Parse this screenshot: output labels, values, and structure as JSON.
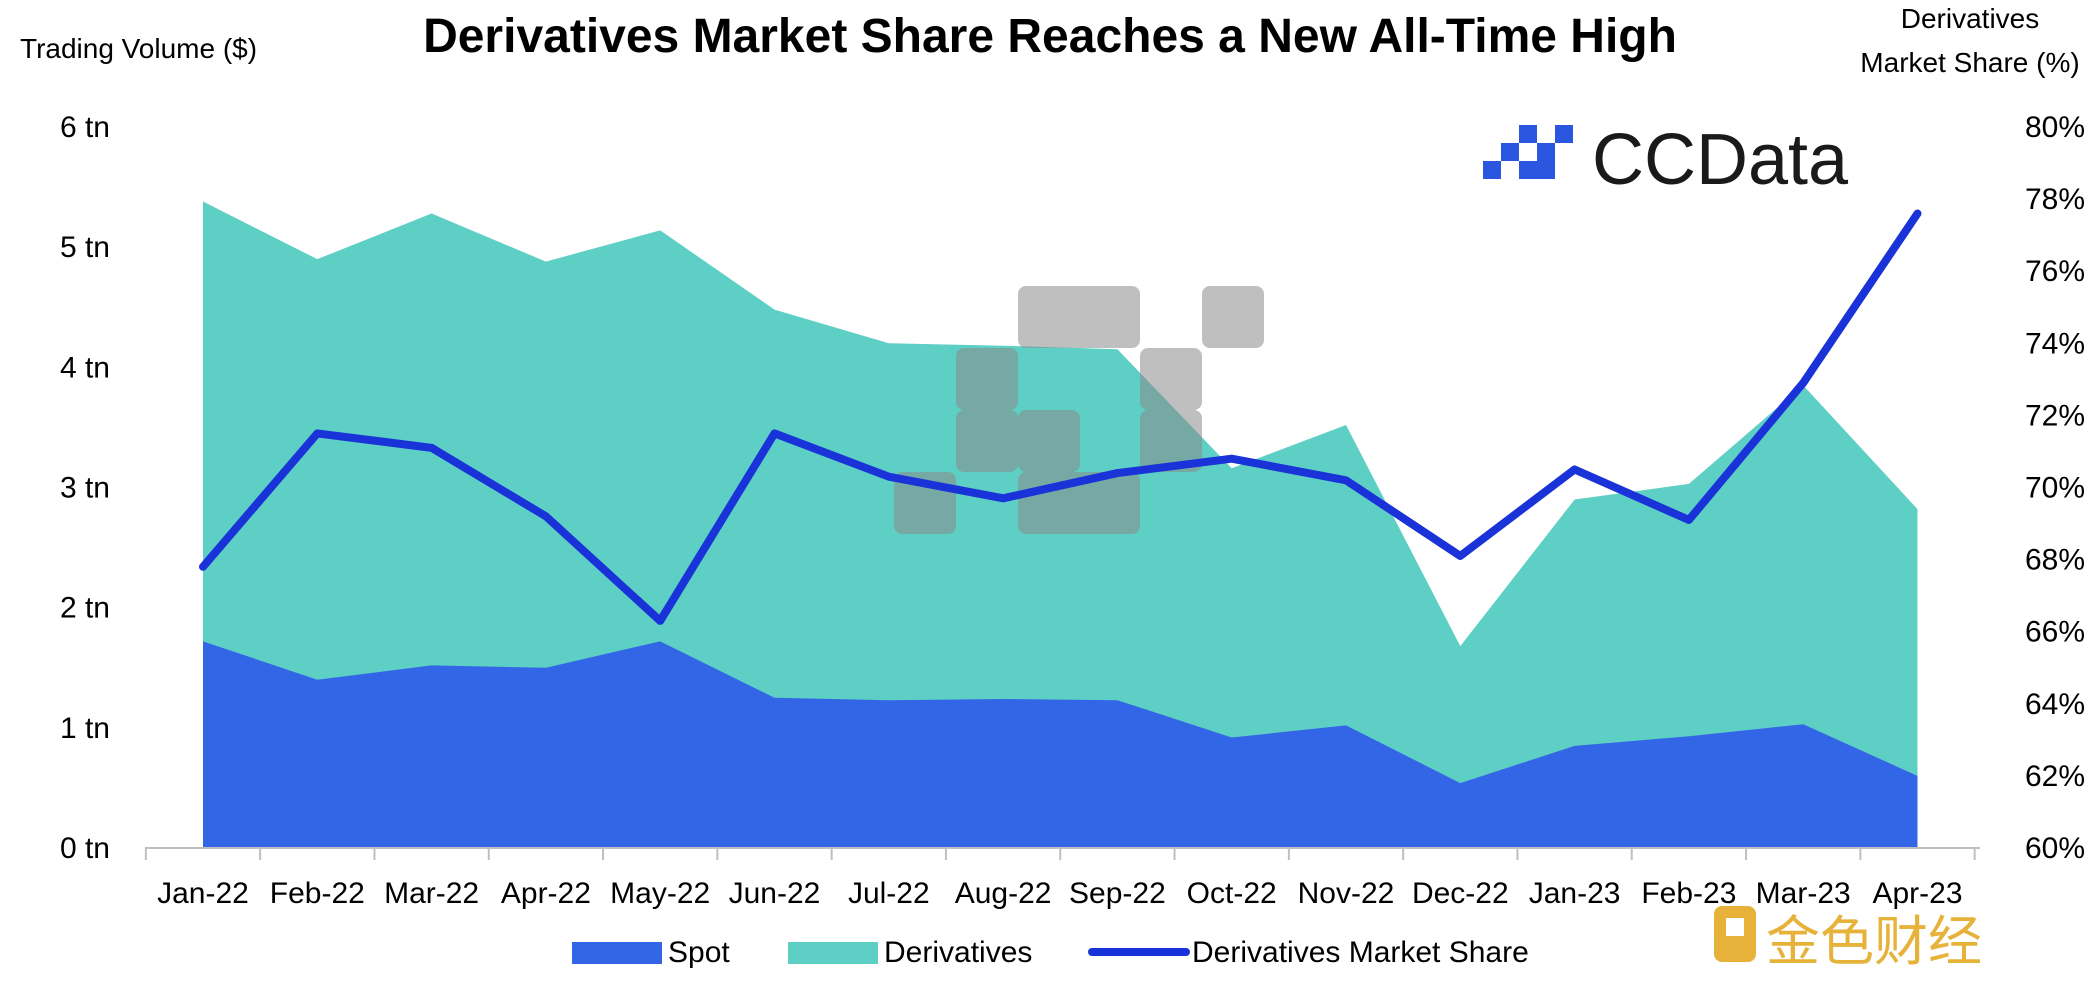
{
  "chart_data": {
    "type": "area",
    "title": "Derivatives Market Share Reaches a New All-Time High",
    "left_axis_label": "Trading Volume ($)",
    "right_axis_label_line1": "Derivatives",
    "right_axis_label_line2": "Market Share (%)",
    "categories": [
      "Jan-22",
      "Feb-22",
      "Mar-22",
      "Apr-22",
      "May-22",
      "Jun-22",
      "Jul-22",
      "Aug-22",
      "Sep-22",
      "Oct-22",
      "Nov-22",
      "Dec-22",
      "Jan-23",
      "Feb-23",
      "Mar-23",
      "Apr-23"
    ],
    "left_axis": {
      "min": 0,
      "max": 6,
      "ticks": [
        0,
        1,
        2,
        3,
        4,
        5,
        6
      ],
      "tick_labels": [
        "0 tn",
        "1 tn",
        "2 tn",
        "3 tn",
        "4 tn",
        "5 tn",
        "6 tn"
      ]
    },
    "right_axis": {
      "min": 60,
      "max": 80,
      "ticks": [
        60,
        62,
        64,
        66,
        68,
        70,
        72,
        74,
        76,
        78,
        80
      ],
      "tick_labels": [
        "60%",
        "62%",
        "64%",
        "66%",
        "68%",
        "70%",
        "72%",
        "74%",
        "76%",
        "78%",
        "80%"
      ]
    },
    "series": [
      {
        "name": "Spot",
        "type": "area",
        "axis": "left",
        "color": "#3366E6",
        "values": [
          1.72,
          1.4,
          1.52,
          1.5,
          1.72,
          1.25,
          1.23,
          1.24,
          1.23,
          0.92,
          1.02,
          0.54,
          0.85,
          0.93,
          1.03,
          0.6
        ]
      },
      {
        "name": "Derivatives",
        "type": "area",
        "axis": "left",
        "stacked_on": "Spot",
        "color": "#5ECFC4",
        "values": [
          3.66,
          3.5,
          3.76,
          3.38,
          3.42,
          3.23,
          2.97,
          2.94,
          2.92,
          2.24,
          2.5,
          1.14,
          2.05,
          2.1,
          2.82,
          2.22
        ]
      },
      {
        "name": "Derivatives Market Share",
        "type": "line",
        "axis": "right",
        "color": "#1A33D9",
        "values": [
          67.8,
          71.5,
          71.1,
          69.2,
          66.3,
          71.5,
          70.3,
          69.7,
          70.4,
          70.8,
          70.2,
          68.1,
          70.5,
          69.1,
          72.9,
          77.6
        ]
      }
    ],
    "legend": {
      "position": "bottom"
    },
    "grid": false
  },
  "watermark": {
    "brand_name": "CCData",
    "brand_color": "#2B56E0",
    "text_color": "#1A1A1A"
  },
  "corner_mark": {
    "text": "金色财经",
    "color": "#E6B23A"
  }
}
